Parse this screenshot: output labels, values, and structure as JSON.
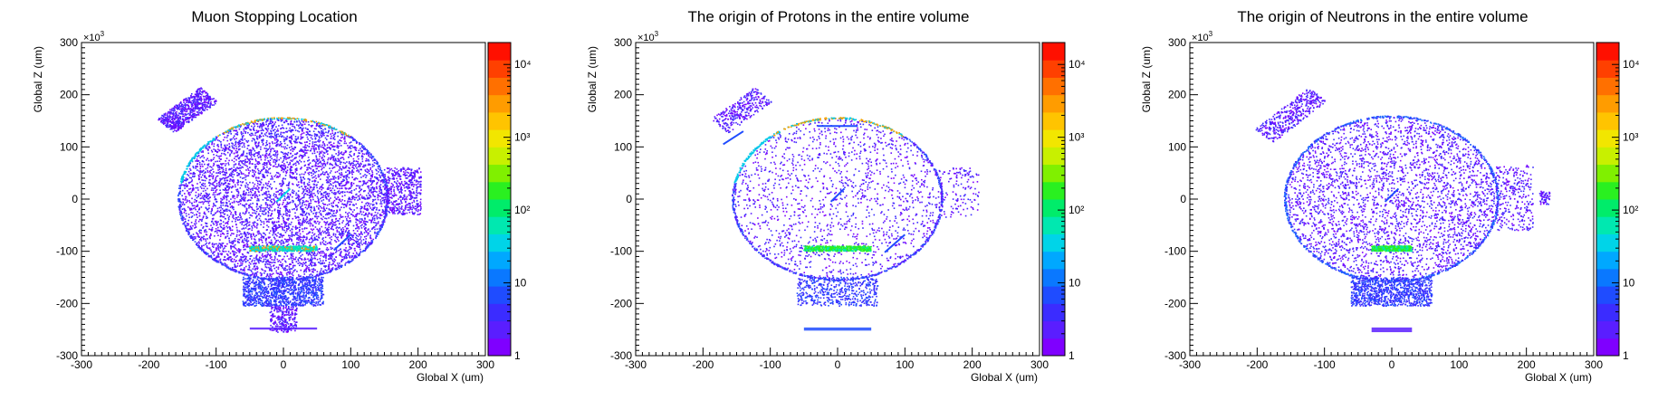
{
  "figure": {
    "colorbar_colors": [
      "#7f00ff",
      "#5a1eff",
      "#3b2cff",
      "#1f4cff",
      "#0a78ff",
      "#00a8ff",
      "#00d4e8",
      "#00e8b0",
      "#00ec6a",
      "#2af020",
      "#80f000",
      "#c8f000",
      "#f2e600",
      "#ffc400",
      "#ff9c00",
      "#ff7000",
      "#ff4000",
      "#ff1000"
    ],
    "axis_multiplier": "×10",
    "axis_multiplier_exp": "3"
  },
  "chart_data": [
    {
      "type": "heatmap",
      "title": "Muon Stopping Location",
      "xlabel": "Global X (um)",
      "ylabel": "Global Z (um)",
      "xlim": [
        -300,
        300
      ],
      "ylim": [
        -300,
        300
      ],
      "x_ticks": [
        -300,
        -200,
        -100,
        0,
        100,
        200,
        300
      ],
      "y_ticks": [
        -300,
        -200,
        -100,
        0,
        100,
        200,
        300
      ],
      "z_scale": "log",
      "zlim": [
        1,
        20000
      ],
      "z_tick_labels": [
        "1",
        "10",
        "10²",
        "10³",
        "10⁴"
      ],
      "features": {
        "ellipse": {
          "cx": 0,
          "cy": 0,
          "rx": 155,
          "ry": 155
        },
        "fill_density": "high",
        "arm": {
          "from": [
            -175,
            140
          ],
          "to": [
            -110,
            200
          ]
        },
        "right_box": {
          "x": [
            150,
            205
          ],
          "y": [
            -30,
            60
          ]
        },
        "bottom_box": {
          "x": [
            -60,
            60
          ],
          "y": [
            -205,
            -150
          ]
        },
        "stem": {
          "x": [
            -20,
            20
          ],
          "y": [
            -255,
            -205
          ]
        },
        "target_bar": {
          "x": [
            -50,
            50
          ],
          "y": [
            -100,
            -90
          ],
          "level": "cyan-red"
        },
        "diagonal_segments": [
          [
            [
              75,
              -98
            ],
            [
              100,
              -68
            ]
          ],
          [
            [
              -10,
              -5
            ],
            [
              10,
              20
            ]
          ]
        ],
        "bottom_strip": {
          "x": [
            -50,
            50
          ],
          "y": [
            -250,
            -246
          ]
        }
      }
    },
    {
      "type": "heatmap",
      "title": "The origin of Protons in the entire volume",
      "xlabel": "Global X (um)",
      "ylabel": "Global Z (um)",
      "xlim": [
        -300,
        300
      ],
      "ylim": [
        -300,
        300
      ],
      "x_ticks": [
        -300,
        -200,
        -100,
        0,
        100,
        200,
        300
      ],
      "y_ticks": [
        -300,
        -200,
        -100,
        0,
        100,
        200,
        300
      ],
      "z_scale": "log",
      "zlim": [
        1,
        20000
      ],
      "z_tick_labels": [
        "1",
        "10",
        "10²",
        "10³",
        "10⁴"
      ],
      "features": {
        "ellipse": {
          "cx": 0,
          "cy": 0,
          "rx": 155,
          "ry": 155
        },
        "fill_density": "low",
        "arm": {
          "from": [
            -175,
            140
          ],
          "to": [
            -110,
            200
          ]
        },
        "right_box": {
          "x": [
            150,
            210
          ],
          "y": [
            -35,
            60
          ]
        },
        "bottom_box": {
          "x": [
            -60,
            60
          ],
          "y": [
            -205,
            -150
          ]
        },
        "target_bar": {
          "x": [
            -50,
            50
          ],
          "y": [
            -100,
            -90
          ],
          "level": "green"
        },
        "diagonal_segments": [
          [
            [
              70,
              -102
            ],
            [
              100,
              -68
            ]
          ],
          [
            [
              -10,
              -5
            ],
            [
              10,
              20
            ]
          ],
          [
            [
              -170,
              105
            ],
            [
              -140,
              130
            ]
          ]
        ],
        "top_segment": {
          "x": [
            -30,
            30
          ],
          "y": [
            140,
            140
          ]
        },
        "bottom_strip": {
          "x": [
            -50,
            50
          ],
          "y": [
            -252,
            -246
          ]
        }
      }
    },
    {
      "type": "heatmap",
      "title": "The origin of Neutrons in the entire volume",
      "xlabel": "Global X (um)",
      "ylabel": "Global Z (um)",
      "xlim": [
        -300,
        300
      ],
      "ylim": [
        -300,
        300
      ],
      "x_ticks": [
        -300,
        -200,
        -100,
        0,
        100,
        200,
        300
      ],
      "y_ticks": [
        -300,
        -200,
        -100,
        0,
        100,
        200,
        300
      ],
      "z_scale": "log",
      "zlim": [
        1,
        20000
      ],
      "z_tick_labels": [
        "1",
        "10",
        "10²",
        "10³",
        "10⁴"
      ],
      "features": {
        "ellipse": {
          "cx": 0,
          "cy": 0,
          "rx": 158,
          "ry": 158
        },
        "fill_density": "medium",
        "arm": {
          "from": [
            -190,
            120
          ],
          "to": [
            -110,
            200
          ]
        },
        "right_box": {
          "x": [
            155,
            210
          ],
          "y": [
            -60,
            65
          ]
        },
        "right_small_box": {
          "x": [
            220,
            235
          ],
          "y": [
            -10,
            15
          ]
        },
        "bottom_box": {
          "x": [
            -60,
            60
          ],
          "y": [
            -205,
            -150
          ]
        },
        "target_bar": {
          "x": [
            -30,
            30
          ],
          "y": [
            -100,
            -90
          ],
          "level": "green"
        },
        "diagonal_segments": [
          [
            [
              -10,
              -5
            ],
            [
              10,
              20
            ]
          ]
        ],
        "bottom_strip": {
          "x": [
            -30,
            30
          ],
          "y": [
            -255,
            -246
          ]
        }
      }
    }
  ]
}
